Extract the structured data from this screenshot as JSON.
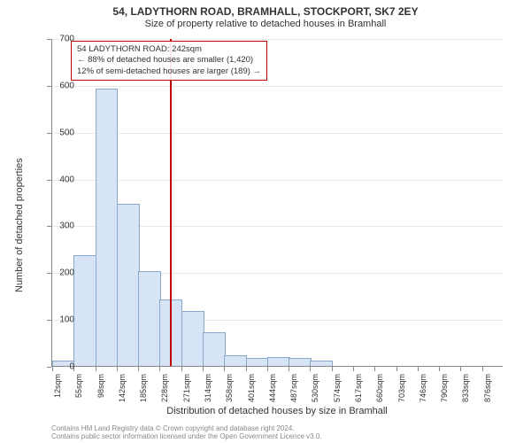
{
  "title_main": "54, LADYTHORN ROAD, BRAMHALL, STOCKPORT, SK7 2EY",
  "title_sub": "Size of property relative to detached houses in Bramhall",
  "chart": {
    "type": "histogram",
    "ylim": [
      0,
      700
    ],
    "ytick_step": 100,
    "y_ticks": [
      0,
      100,
      200,
      300,
      400,
      500,
      600,
      700
    ],
    "x_labels": [
      "12sqm",
      "55sqm",
      "98sqm",
      "142sqm",
      "185sqm",
      "228sqm",
      "271sqm",
      "314sqm",
      "358sqm",
      "401sqm",
      "444sqm",
      "487sqm",
      "530sqm",
      "574sqm",
      "617sqm",
      "660sqm",
      "703sqm",
      "746sqm",
      "790sqm",
      "833sqm",
      "876sqm"
    ],
    "x_label_step": 1,
    "values": [
      10,
      235,
      590,
      345,
      200,
      140,
      115,
      70,
      20,
      15,
      18,
      15,
      10,
      0,
      0,
      0,
      0,
      0,
      0,
      0,
      0
    ],
    "bar_fill": "#d6e4f5",
    "bar_stroke": "#8aa8c9",
    "background": "#ffffff",
    "grid_color": "#e8e8e8",
    "y_axis_title": "Number of detached properties",
    "x_axis_title": "Distribution of detached houses by size in Bramhall",
    "reference_line": {
      "position_sqm": 242,
      "x_min_sqm": 12,
      "x_max_sqm": 897,
      "color": "#c00000"
    },
    "info_box": {
      "line1": "54 LADYTHORN ROAD: 242sqm",
      "line2": "← 88% of detached houses are smaller (1,420)",
      "line3": "12% of semi-detached houses are larger (189) →",
      "border": "#c00000"
    }
  },
  "footer": {
    "line1": "Contains HM Land Registry data © Crown copyright and database right 2024.",
    "line2": "Contains public sector information licensed under the Open Government Licence v3.0."
  }
}
